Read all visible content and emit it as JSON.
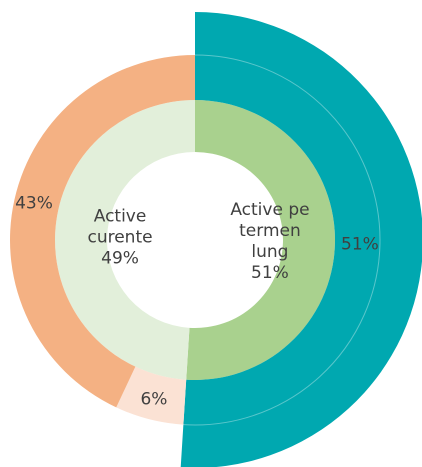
{
  "chart_data": {
    "type": "donut",
    "rings": [
      {
        "categories": [
          "Active pe termen lung",
          "Active curente"
        ],
        "values": [
          51,
          49
        ],
        "value_labels": [
          "51%",
          "49%"
        ],
        "colors": [
          "#a9d18e",
          "#e2efda"
        ]
      },
      {
        "values": [
          51,
          6,
          43
        ],
        "value_labels": [
          "51%",
          "6%",
          "43%"
        ],
        "colors": [
          "#00a8b0",
          "#fbe2d4",
          "#f4b183"
        ]
      }
    ]
  }
}
